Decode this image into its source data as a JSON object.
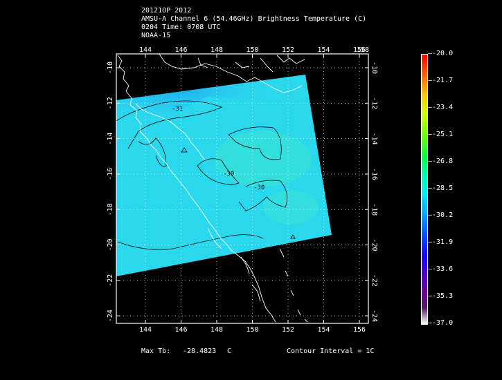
{
  "header": {
    "line1": "20121OP 2012",
    "line2": "AMSU-A Channel 6 (54.46GHz) Brightness Temperature (C)",
    "line3": "0204 Time: 0708 UTC",
    "line4": "NOAA-15"
  },
  "map": {
    "lon_ticks": [
      "144",
      "146",
      "148",
      "150",
      "152",
      "154",
      "156",
      "158"
    ],
    "lon_ticks_bottom": [
      "144",
      "146",
      "148",
      "150",
      "152",
      "154",
      "156"
    ],
    "lat_ticks": [
      "-10",
      "-12",
      "-14",
      "-16",
      "-18",
      "-20",
      "-22",
      "-24"
    ],
    "contour_labels": [
      "-31",
      "-30",
      "-30"
    ]
  },
  "colorbar": {
    "labels": [
      "-20.0",
      "-21.7",
      "-23.4",
      "-25.1",
      "-26.8",
      "-28.5",
      "-30.2",
      "-31.9",
      "-33.6",
      "-35.3",
      "-37.0"
    ]
  },
  "footer": {
    "max_label": "Max Tb:",
    "max_value": "-28.4823",
    "max_unit": "C",
    "contour_interval": "Contour Interval = 1C"
  },
  "colors": {
    "swath_main": "#2ad8ee",
    "swath_cool": "#20b0f0",
    "swath_warm": "#3ee8c8"
  }
}
